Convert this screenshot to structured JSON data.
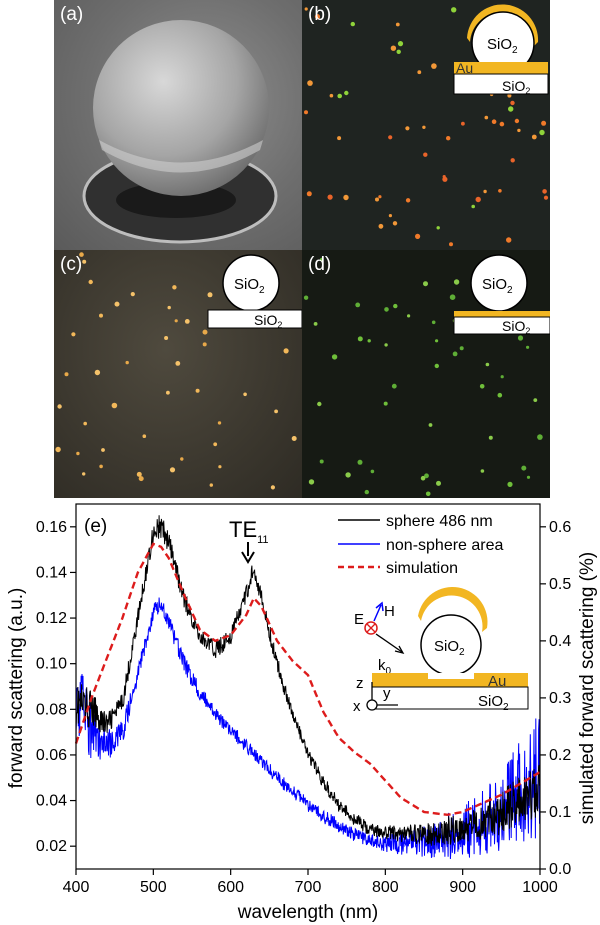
{
  "panels": {
    "a": {
      "label": "(a)"
    },
    "b": {
      "label": "(b)",
      "sphere_text": "SiO",
      "sphere_sub": "2",
      "film_text": "Au",
      "substrate_text": "SiO",
      "substrate_sub": "2"
    },
    "c": {
      "label": "(c)",
      "sphere_text": "SiO",
      "sphere_sub": "2",
      "substrate_text": "SiO",
      "substrate_sub": "2"
    },
    "d": {
      "label": "(d)",
      "sphere_text": "SiO",
      "sphere_sub": "2",
      "substrate_text": "SiO",
      "substrate_sub": "2"
    }
  },
  "colors": {
    "gold": "#f2b622",
    "sphere_486": "#000000",
    "non_sphere": "#0000ff",
    "simulation": "#dd1c1c"
  },
  "chart_data": {
    "type": "line",
    "panel_label": "(e)",
    "xlabel": "wavelength (nm)",
    "ylabel_left": "forward scattering (a.u.)",
    "ylabel_right": "simulated forward scattering (%)",
    "xlim": [
      400,
      1000
    ],
    "ylim_left": [
      0.01,
      0.17
    ],
    "ylim_right": [
      0.0,
      0.64
    ],
    "x_ticks": [
      400,
      500,
      600,
      700,
      800,
      900,
      1000
    ],
    "y_ticks_left": [
      0.02,
      0.04,
      0.06,
      0.08,
      0.1,
      0.12,
      0.14,
      0.16
    ],
    "y_ticks_left_labels": [
      "0.02",
      "0.04",
      "0.06",
      "0.08",
      "0.10",
      "0.12",
      "0.14",
      "0.16"
    ],
    "y_ticks_right": [
      0.0,
      0.1,
      0.2,
      0.3,
      0.4,
      0.5,
      0.6
    ],
    "y_ticks_right_labels": [
      "0.0",
      "0.1",
      "0.2",
      "0.3",
      "0.4",
      "0.5",
      "0.6"
    ],
    "legend_position": "top-right",
    "annotation": {
      "text": "TE",
      "sub": "11",
      "x": 630
    },
    "inset": {
      "e_label": "E",
      "h_label": "H",
      "k_label": "k",
      "k_sub": "0",
      "sphere_text": "SiO",
      "sphere_sub": "2",
      "film_text": "Au",
      "substrate_text": "SiO",
      "substrate_sub": "2",
      "axis_z": "z",
      "axis_y": "y",
      "axis_x": "x"
    },
    "series": [
      {
        "name": "sphere 486 nm",
        "axis": "left",
        "x": [
          400,
          420,
          440,
          460,
          480,
          500,
          510,
          520,
          540,
          560,
          580,
          600,
          620,
          630,
          640,
          660,
          680,
          700,
          720,
          740,
          760,
          780,
          800,
          850,
          900,
          950,
          1000
        ],
        "y": [
          0.083,
          0.08,
          0.073,
          0.083,
          0.12,
          0.158,
          0.16,
          0.153,
          0.128,
          0.112,
          0.106,
          0.112,
          0.13,
          0.143,
          0.128,
          0.1,
          0.078,
          0.06,
          0.048,
          0.038,
          0.032,
          0.027,
          0.026,
          0.025,
          0.028,
          0.035,
          0.045
        ],
        "noise": [
          0.012,
          0.008,
          0.005,
          0.004,
          0.004,
          0.005,
          0.006,
          0.005,
          0.004,
          0.004,
          0.004,
          0.004,
          0.004,
          0.004,
          0.004,
          0.004,
          0.003,
          0.003,
          0.003,
          0.003,
          0.003,
          0.003,
          0.003,
          0.005,
          0.007,
          0.01,
          0.012
        ]
      },
      {
        "name": "non-sphere area",
        "axis": "left",
        "x": [
          400,
          420,
          440,
          460,
          480,
          500,
          510,
          520,
          540,
          560,
          580,
          600,
          620,
          640,
          660,
          680,
          700,
          720,
          740,
          760,
          780,
          800,
          850,
          900,
          950,
          1000
        ],
        "y": [
          0.085,
          0.07,
          0.064,
          0.07,
          0.095,
          0.123,
          0.126,
          0.118,
          0.1,
          0.087,
          0.078,
          0.071,
          0.064,
          0.057,
          0.05,
          0.044,
          0.038,
          0.033,
          0.029,
          0.025,
          0.022,
          0.021,
          0.022,
          0.026,
          0.036,
          0.052
        ],
        "noise": [
          0.02,
          0.012,
          0.007,
          0.005,
          0.004,
          0.004,
          0.004,
          0.004,
          0.004,
          0.004,
          0.003,
          0.003,
          0.003,
          0.003,
          0.003,
          0.003,
          0.003,
          0.003,
          0.003,
          0.003,
          0.003,
          0.004,
          0.007,
          0.012,
          0.018,
          0.03
        ]
      },
      {
        "name": "simulation",
        "axis": "right",
        "dashed": true,
        "x": [
          400,
          420,
          440,
          460,
          480,
          500,
          510,
          520,
          540,
          560,
          580,
          600,
          620,
          630,
          640,
          660,
          680,
          700,
          720,
          740,
          760,
          780,
          800,
          820,
          850,
          880,
          900,
          950,
          1000
        ],
        "y": [
          0.22,
          0.3,
          0.37,
          0.44,
          0.52,
          0.57,
          0.565,
          0.545,
          0.48,
          0.42,
          0.4,
          0.41,
          0.445,
          0.475,
          0.46,
          0.4,
          0.365,
          0.34,
          0.275,
          0.23,
          0.205,
          0.185,
          0.155,
          0.125,
          0.1,
          0.095,
          0.1,
          0.13,
          0.17
        ]
      }
    ]
  }
}
